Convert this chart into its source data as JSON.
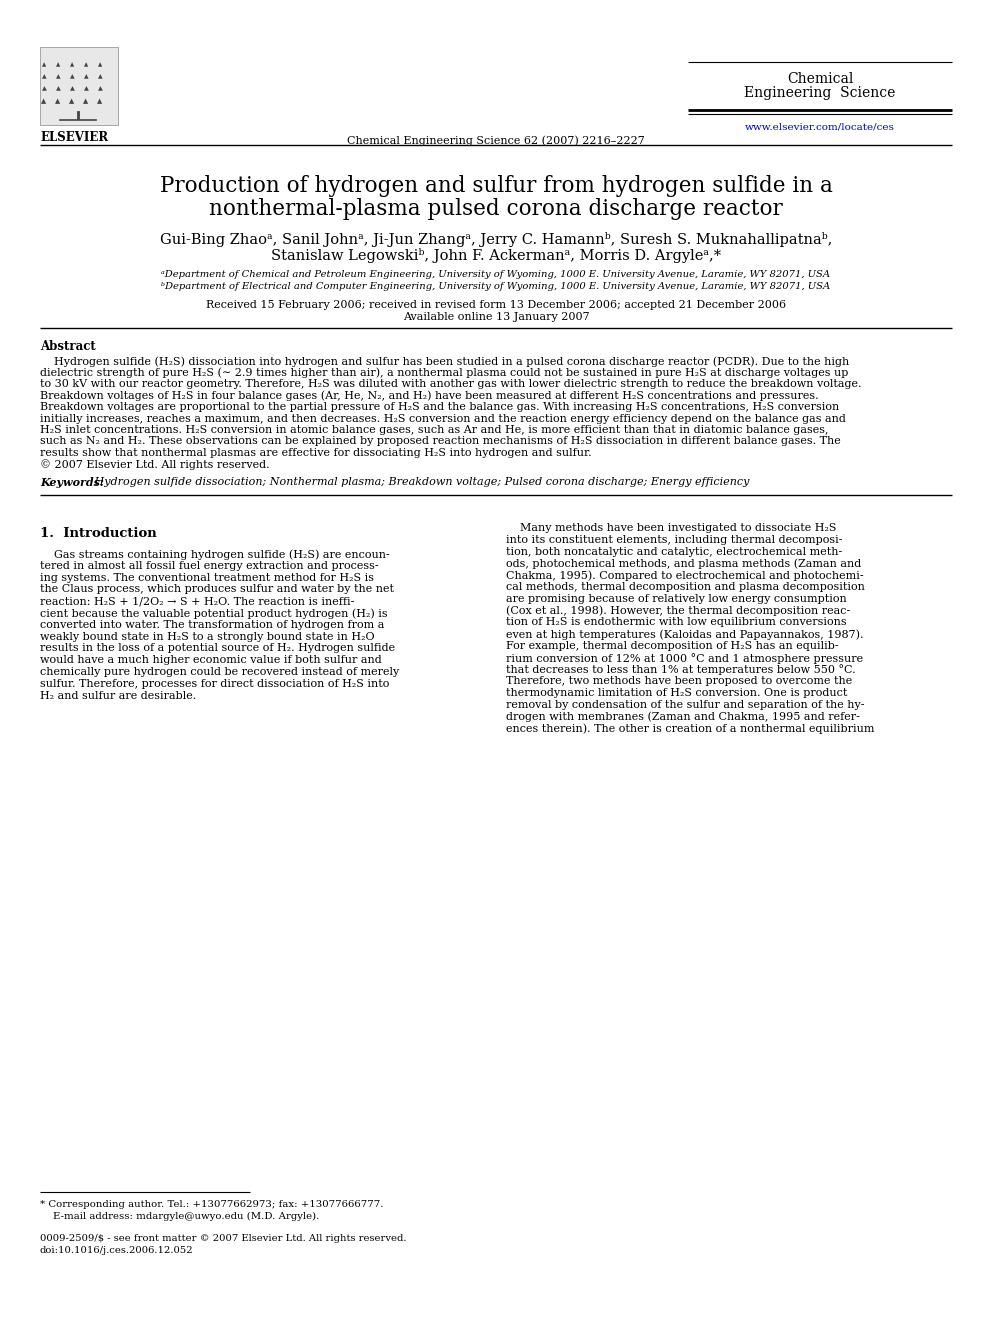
{
  "bg_color": "#ffffff",
  "title_line1": "Production of hydrogen and sulfur from hydrogen sulfide in a",
  "title_line2": "nonthermal-plasma pulsed corona discharge reactor",
  "authors_line1": "Gui-Bing Zhaoᵃ, Sanil Johnᵃ, Ji-Jun Zhangᵃ, Jerry C. Hamannᵇ, Suresh S. Muknahallipatnaᵇ,",
  "authors_line2": "Stanislaw Legowskiᵇ, John F. Ackermanᵃ, Morris D. Argyleᵃ,*",
  "affil_a": "ᵃDepartment of Chemical and Petroleum Engineering, University of Wyoming, 1000 E. University Avenue, Laramie, WY 82071, USA",
  "affil_b": "ᵇDepartment of Electrical and Computer Engineering, University of Wyoming, 1000 E. University Avenue, Laramie, WY 82071, USA",
  "dates": "Received 15 February 2006; received in revised form 13 December 2006; accepted 21 December 2006",
  "available": "Available online 13 January 2007",
  "journal_center": "Chemical Engineering Science 62 (2007) 2216–2227",
  "journal_top_line1": "Chemical",
  "journal_top_line2": "Engineering  Science",
  "website": "www.elsevier.com/locate/ces",
  "elsevier_text": "ELSEVIER",
  "abstract_title": "Abstract",
  "abstract_lines": [
    "    Hydrogen sulfide (H₂S) dissociation into hydrogen and sulfur has been studied in a pulsed corona discharge reactor (PCDR). Due to the high",
    "dielectric strength of pure H₂S (∼ 2.9 times higher than air), a nonthermal plasma could not be sustained in pure H₂S at discharge voltages up",
    "to 30 kV with our reactor geometry. Therefore, H₂S was diluted with another gas with lower dielectric strength to reduce the breakdown voltage.",
    "Breakdown voltages of H₂S in four balance gases (Ar, He, N₂, and H₂) have been measured at different H₂S concentrations and pressures.",
    "Breakdown voltages are proportional to the partial pressure of H₂S and the balance gas. With increasing H₂S concentrations, H₂S conversion",
    "initially increases, reaches a maximum, and then decreases. H₂S conversion and the reaction energy efficiency depend on the balance gas and",
    "H₂S inlet concentrations. H₂S conversion in atomic balance gases, such as Ar and He, is more efficient than that in diatomic balance gases,",
    "such as N₂ and H₂. These observations can be explained by proposed reaction mechanisms of H₂S dissociation in different balance gases. The",
    "results show that nonthermal plasmas are effective for dissociating H₂S into hydrogen and sulfur.",
    "© 2007 Elsevier Ltd. All rights reserved."
  ],
  "keywords_label": "Keywords:",
  "keywords_text": " Hydrogen sulfide dissociation; Nonthermal plasma; Breakdown voltage; Pulsed corona discharge; Energy efficiency",
  "section1_title": "1.  Introduction",
  "intro_left_lines": [
    "    Gas streams containing hydrogen sulfide (H₂S) are encoun-",
    "tered in almost all fossil fuel energy extraction and process-",
    "ing systems. The conventional treatment method for H₂S is",
    "the Claus process, which produces sulfur and water by the net",
    "reaction: H₂S + 1/2O₂ → S + H₂O. The reaction is ineffi-",
    "cient because the valuable potential product hydrogen (H₂) is",
    "converted into water. The transformation of hydrogen from a",
    "weakly bound state in H₂S to a strongly bound state in H₂O",
    "results in the loss of a potential source of H₂. Hydrogen sulfide",
    "would have a much higher economic value if both sulfur and",
    "chemically pure hydrogen could be recovered instead of merely",
    "sulfur. Therefore, processes for direct dissociation of H₂S into",
    "H₂ and sulfur are desirable."
  ],
  "intro_right_lines": [
    "    Many methods have been investigated to dissociate H₂S",
    "into its constituent elements, including thermal decomposi-",
    "tion, both noncatalytic and catalytic, electrochemical meth-",
    "ods, photochemical methods, and plasma methods (Zaman and",
    "Chakma, 1995). Compared to electrochemical and photochemi-",
    "cal methods, thermal decomposition and plasma decomposition",
    "are promising because of relatively low energy consumption",
    "(Cox et al., 1998). However, the thermal decomposition reac-",
    "tion of H₂S is endothermic with low equilibrium conversions",
    "even at high temperatures (Kaloidas and Papayannakos, 1987).",
    "For example, thermal decomposition of H₂S has an equilib-",
    "rium conversion of 12% at 1000 °C and 1 atmosphere pressure",
    "that decreases to less than 1% at temperatures below 550 °C.",
    "Therefore, two methods have been proposed to overcome the",
    "thermodynamic limitation of H₂S conversion. One is product",
    "removal by condensation of the sulfur and separation of the hy-",
    "drogen with membranes (Zaman and Chakma, 1995 and refer-",
    "ences therein). The other is creation of a nonthermal equilibrium"
  ],
  "footnote_star": "* Corresponding author. Tel.: +13077662973; fax: +13077666777.",
  "footnote_email": "    E-mail address: mdargyle@uwyo.edu (M.D. Argyle).",
  "footnote_issn": "0009-2509/$ - see front matter © 2007 Elsevier Ltd. All rights reserved.",
  "footnote_doi": "doi:10.1016/j.ces.2006.12.052",
  "ref_color": "#0000cc"
}
